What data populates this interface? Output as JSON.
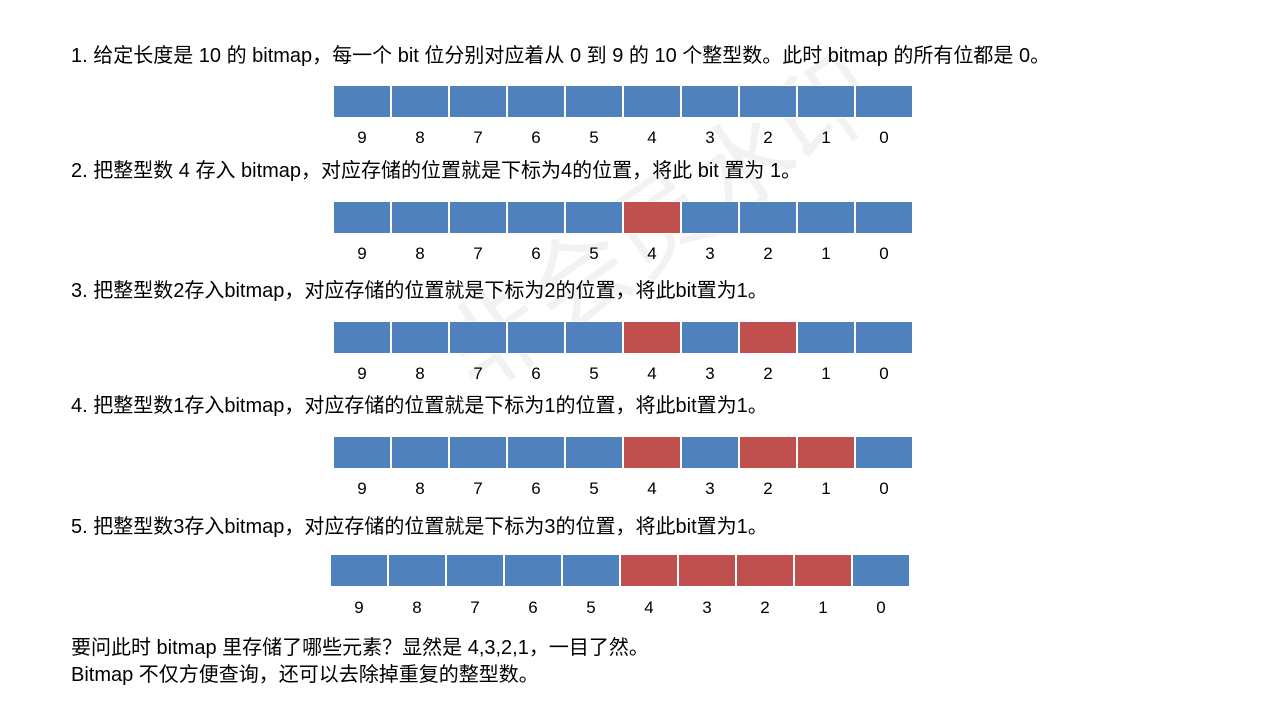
{
  "indices": [
    "9",
    "8",
    "7",
    "6",
    "5",
    "4",
    "3",
    "2",
    "1",
    "0"
  ],
  "colors": {
    "off": "#4f81bd",
    "on": "#c0504d"
  },
  "steps": [
    {
      "text": "1. 给定长度是 10 的 bitmap，每一个 bit 位分别对应着从 0 到 9 的 10 个整型数。此时 bitmap 的所有位都是 0。",
      "bits": [
        0,
        0,
        0,
        0,
        0,
        0,
        0,
        0,
        0,
        0
      ]
    },
    {
      "text": "2. 把整型数 4 存入 bitmap，对应存储的位置就是下标为4的位置，将此 bit 置为 1。",
      "bits": [
        0,
        0,
        0,
        0,
        0,
        1,
        0,
        0,
        0,
        0
      ]
    },
    {
      "text": "3. 把整型数2存入bitmap，对应存储的位置就是下标为2的位置，将此bit置为1。",
      "bits": [
        0,
        0,
        0,
        0,
        0,
        1,
        0,
        1,
        0,
        0
      ]
    },
    {
      "text": "4. 把整型数1存入bitmap，对应存储的位置就是下标为1的位置，将此bit置为1。",
      "bits": [
        0,
        0,
        0,
        0,
        0,
        1,
        0,
        1,
        1,
        0
      ]
    },
    {
      "text": "5. 把整型数3存入bitmap，对应存储的位置就是下标为3的位置，将此bit置为1。",
      "bits": [
        0,
        0,
        0,
        0,
        0,
        1,
        1,
        1,
        1,
        0
      ]
    }
  ],
  "footer": {
    "line1": "要问此时 bitmap 里存储了哪些元素？显然是 4,3,2,1，一目了然。",
    "line2": "Bitmap 不仅方便查询，还可以去除掉重复的整型数。"
  },
  "watermark": "非会员水印"
}
